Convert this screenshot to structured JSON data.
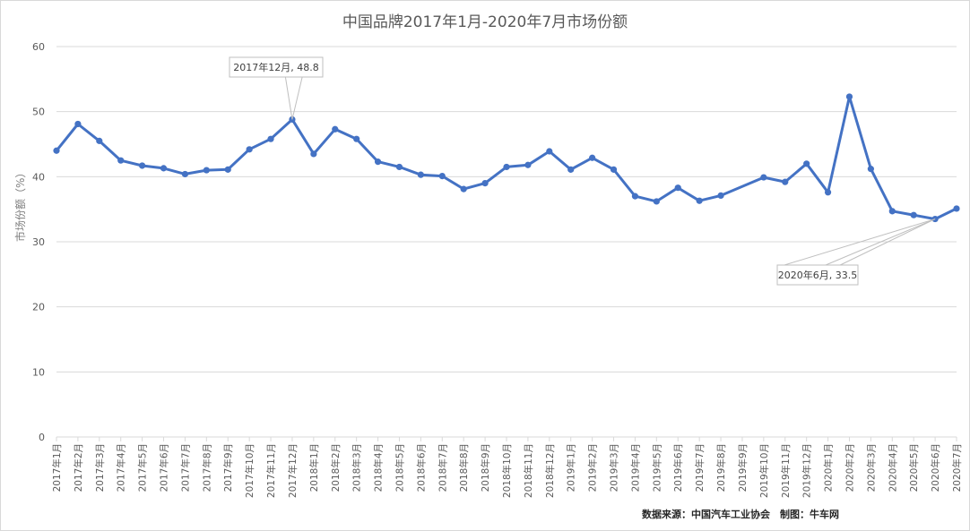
{
  "chart_data": {
    "type": "line",
    "title": "中国品牌2017年1月-2020年7月市场份额",
    "xlabel": "",
    "ylabel": "市场份额（%）",
    "ylim": [
      0,
      60
    ],
    "yticks": [
      0,
      10,
      20,
      30,
      40,
      50,
      60
    ],
    "grid": true,
    "legend": null,
    "categories": [
      "2017年1月",
      "2017年2月",
      "2017年3月",
      "2017年4月",
      "2017年5月",
      "2017年6月",
      "2017年7月",
      "2017年8月",
      "2017年9月",
      "2017年10月",
      "2017年11月",
      "2017年12月",
      "2018年1月",
      "2018年2月",
      "2018年3月",
      "2018年4月",
      "2018年5月",
      "2018年6月",
      "2018年7月",
      "2018年8月",
      "2018年9月",
      "2018年10月",
      "2018年11月",
      "2018年12月",
      "2019年1月",
      "2019年2月",
      "2019年3月",
      "2019年4月",
      "2019年5月",
      "2019年6月",
      "2019年7月",
      "2019年8月",
      "2019年9月",
      "2019年10月",
      "2019年11月",
      "2019年12月",
      "2020年1月",
      "2020年2月",
      "2020年3月",
      "2020年4月",
      "2020年5月",
      "2020年6月",
      "2020年7月"
    ],
    "series": [
      {
        "name": "市场份额",
        "color": "#4472c4",
        "values": [
          44.0,
          48.1,
          45.5,
          42.5,
          41.7,
          41.3,
          40.4,
          41.0,
          41.1,
          44.2,
          45.8,
          48.8,
          43.5,
          47.3,
          45.8,
          42.3,
          41.5,
          40.3,
          40.1,
          38.1,
          39.0,
          41.5,
          41.8,
          43.9,
          41.1,
          42.9,
          41.1,
          37.0,
          36.2,
          38.3,
          36.3,
          37.1,
          null,
          39.9,
          39.2,
          42.0,
          37.6,
          52.3,
          41.2,
          34.7,
          34.1,
          33.5,
          35.1
        ]
      }
    ],
    "annotations": [
      {
        "label": "2017年12月, 48.8",
        "index": 11
      },
      {
        "label": "2020年6月, 33.5",
        "index": 41
      }
    ]
  },
  "footnote": "数据来源：中国汽车工业协会　制图：牛车网"
}
